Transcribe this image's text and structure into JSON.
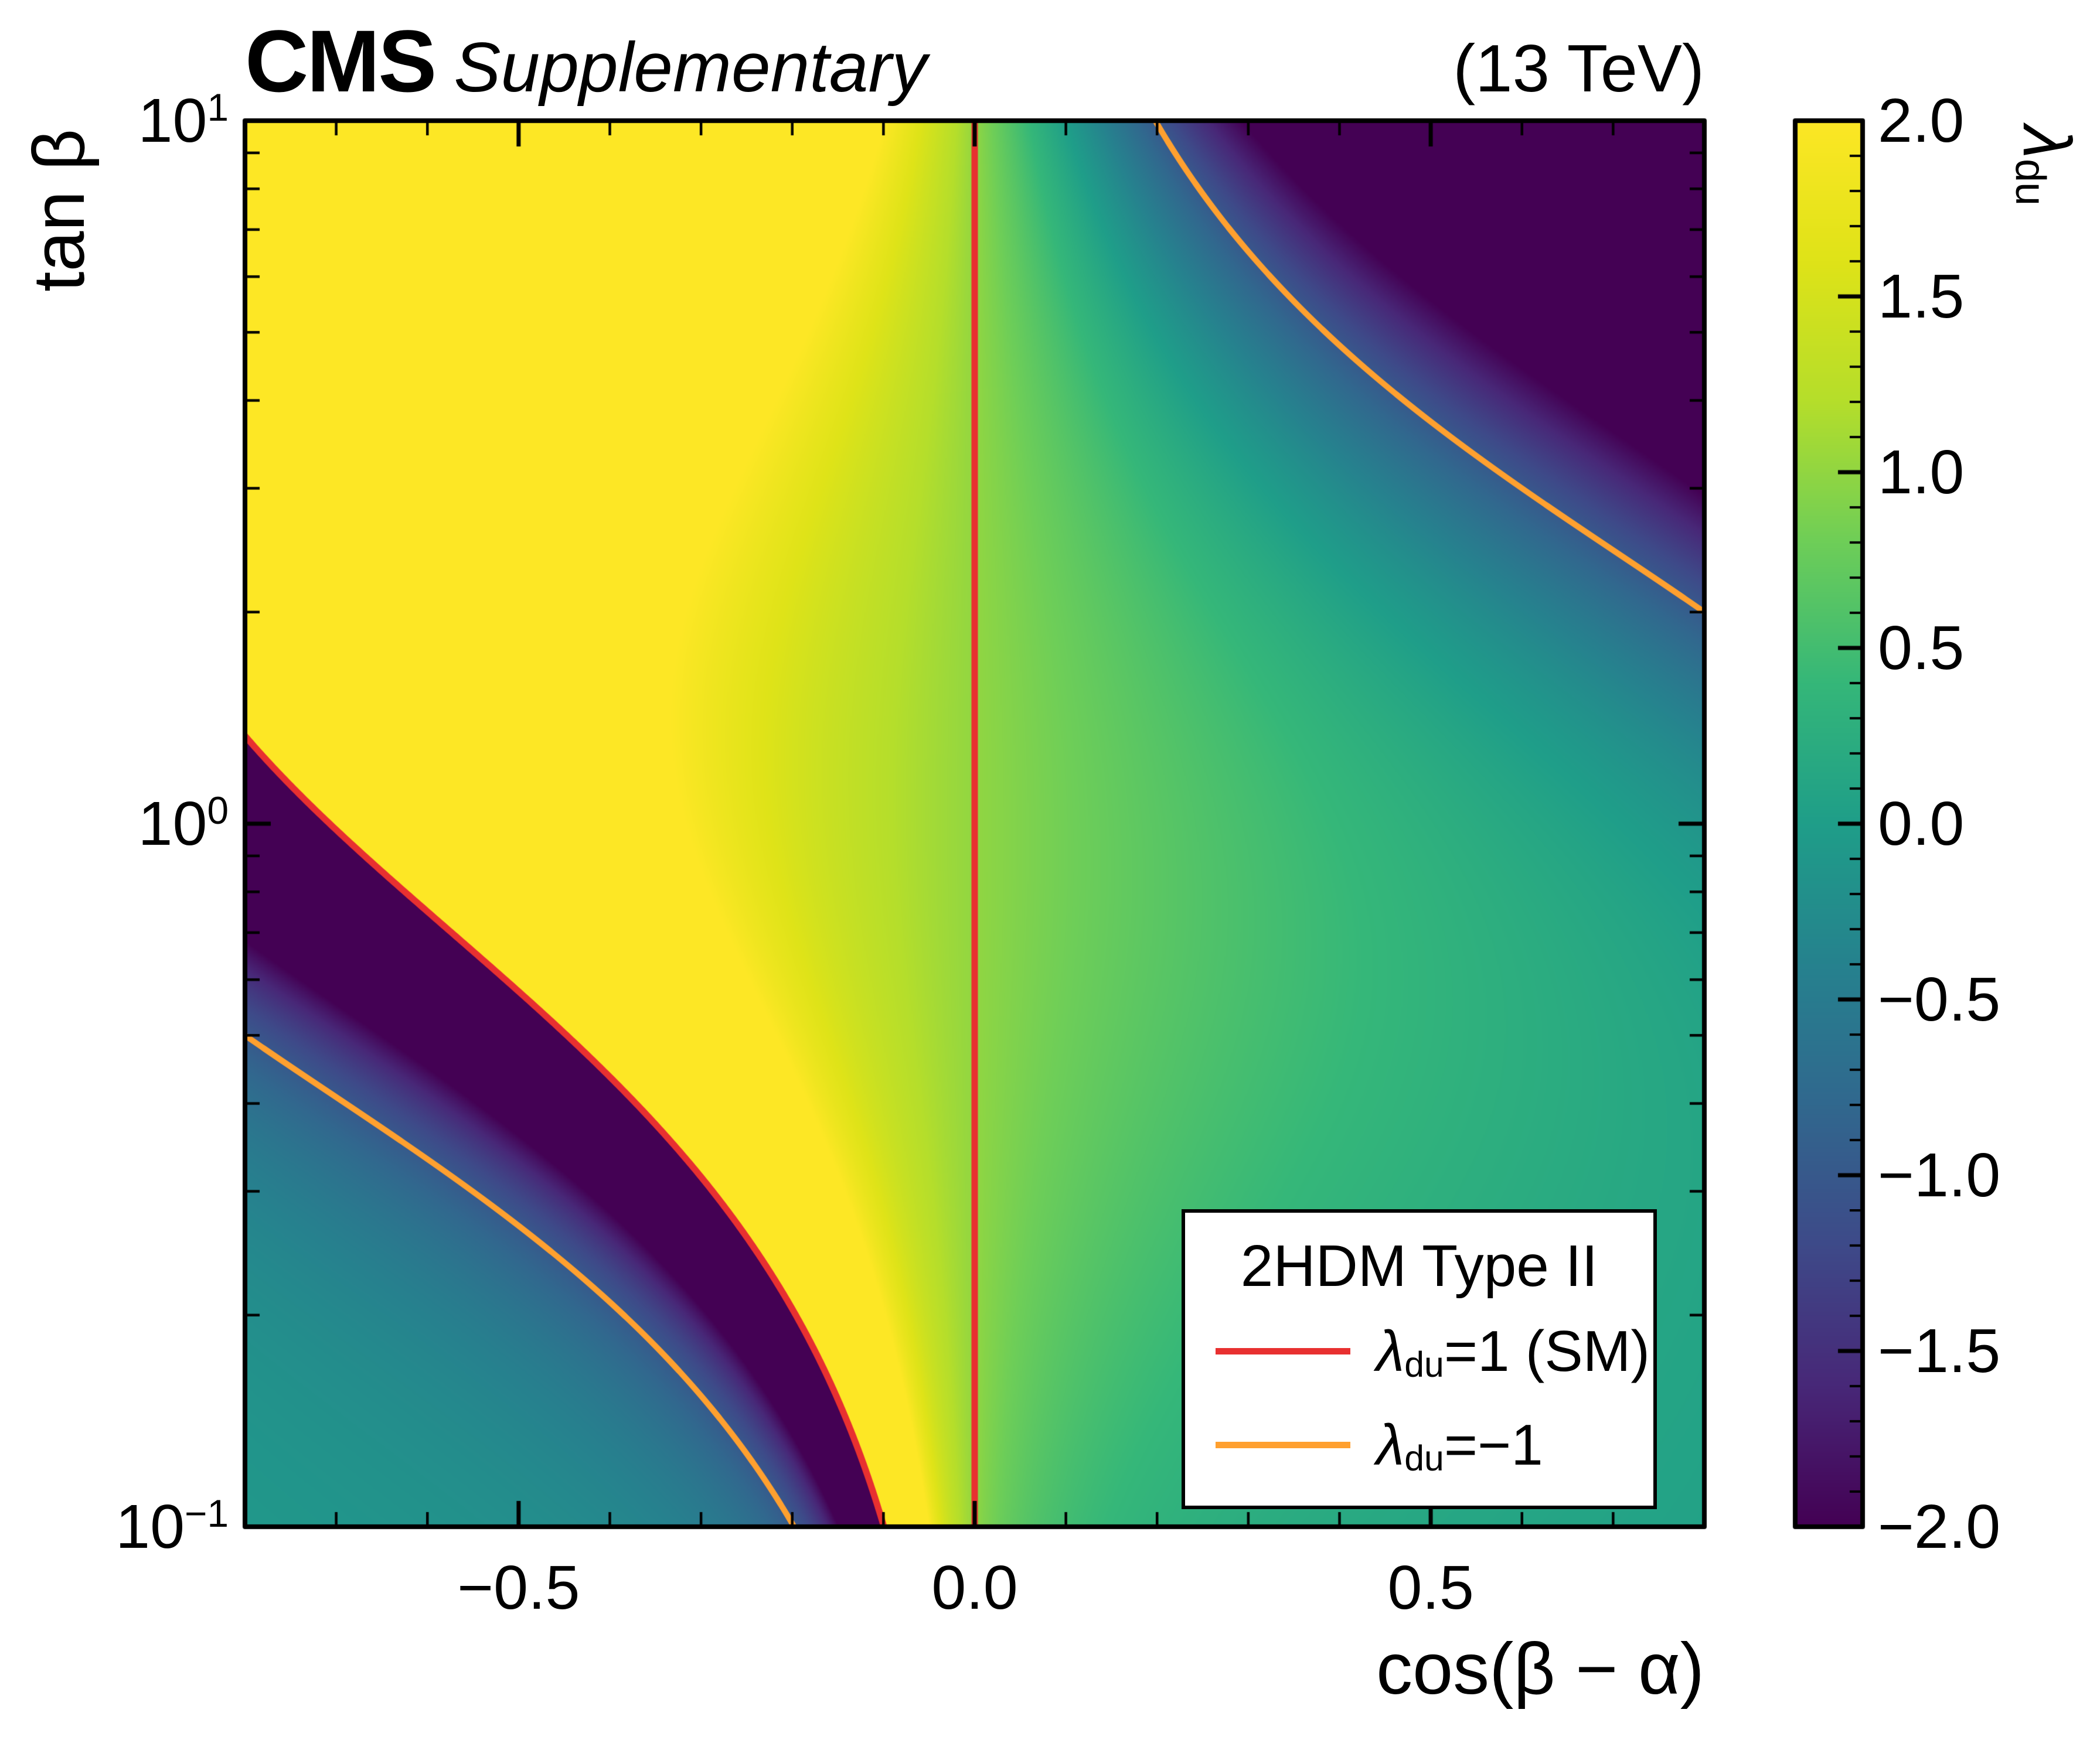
{
  "header": {
    "experiment": "CMS",
    "label": "Supplementary",
    "energy": "(13 TeV)"
  },
  "axes": {
    "x": {
      "label": "cos(β − α)",
      "range": [
        -0.8,
        0.8
      ],
      "minor_tick_step": 0.1,
      "ticks": [
        {
          "label": "−0.5",
          "value": -0.5
        },
        {
          "label": "0.0",
          "value": 0
        },
        {
          "label": "0.5",
          "value": 0.5
        }
      ]
    },
    "y": {
      "label": "tan β",
      "scale": "log",
      "range": [
        0.1,
        10
      ],
      "ticks": [
        {
          "base": "10",
          "exp": "1",
          "value": 10
        },
        {
          "base": "10",
          "exp": "0",
          "value": 1
        },
        {
          "base": "10",
          "exp": "−1",
          "value": 0.1
        }
      ],
      "minor_ticks": [
        0.2,
        0.3,
        0.4,
        0.5,
        0.6,
        0.7,
        0.8,
        0.9,
        2,
        3,
        4,
        5,
        6,
        7,
        8,
        9
      ]
    },
    "z": {
      "label_pre": "λ",
      "label_sub": "du",
      "range": [
        -2,
        2
      ],
      "minor_tick_step": 0.1,
      "ticks": [
        {
          "label": "2.0",
          "value": 2
        },
        {
          "label": "1.5",
          "value": 1.5
        },
        {
          "label": "1.0",
          "value": 1
        },
        {
          "label": "0.5",
          "value": 0.5
        },
        {
          "label": "0.0",
          "value": 0
        },
        {
          "label": "−0.5",
          "value": -0.5
        },
        {
          "label": "−1.0",
          "value": -1
        },
        {
          "label": "−1.5",
          "value": -1.5
        },
        {
          "label": "−2.0",
          "value": -2
        }
      ]
    }
  },
  "legend": {
    "title": "2HDM Type II",
    "entries": [
      {
        "color": "#e83030",
        "pre": "λ",
        "sub": "du",
        "post": "=1 (SM)"
      },
      {
        "color": "#ffa02f",
        "pre": "λ",
        "sub": "du",
        "post": "=−1"
      }
    ]
  },
  "chart_data": {
    "type": "heatmap",
    "title": "CMS Supplementary (13 TeV)",
    "model": "2HDM Type II",
    "xlabel": "cos(β − α)",
    "ylabel": "tan β",
    "zlabel": "λ_du",
    "x_range": [
      -0.8,
      0.8
    ],
    "y_range": [
      0.1,
      10
    ],
    "y_scale": "log",
    "z_range": [
      -2,
      2
    ],
    "value_function": "λ_du(x, tanβ) = −tan(β − arccos(x))·tanβ with β = arctan(tanβ); values clipped to z_range for colouring",
    "colormap": "viridis",
    "colormap_stops": [
      [
        0.0,
        "#440154"
      ],
      [
        0.1,
        "#482878"
      ],
      [
        0.2,
        "#3e4a89"
      ],
      [
        0.3,
        "#31688e"
      ],
      [
        0.4,
        "#26828e"
      ],
      [
        0.5,
        "#1f9e89"
      ],
      [
        0.6,
        "#35b779"
      ],
      [
        0.7,
        "#6ece58"
      ],
      [
        0.8,
        "#b5de2b"
      ],
      [
        0.9,
        "#dfe318"
      ],
      [
        1.0,
        "#fde725"
      ]
    ],
    "contours": [
      {
        "value": 1,
        "label": "λ_du=1 (SM)",
        "color": "#e83030",
        "curves": [
          "cos(β−α) = 0 (vertical SM line)",
          "cos(β−α) = −tanβ/√(1+tanβ²) for 0.1 ≤ tanβ ≤ 1.33 (discontinuity edge of yellow wedge)"
        ]
      },
      {
        "value": -1,
        "label": "λ_du=−1",
        "color": "#ffa02f",
        "curves": [
          "cos(β−α) = 2tanβ/(1+tanβ²) for tanβ ≥ 2 (upper-right branch)",
          "cos(β−α) = −2tanβ/(1+tanβ²) for tanβ ≤ 0.5 (lower-left branch)"
        ]
      }
    ]
  }
}
